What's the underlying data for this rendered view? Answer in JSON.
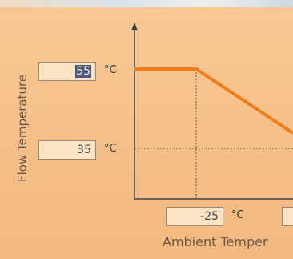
{
  "flow_temperature": {
    "label": "Flow Temperature",
    "max_value": "55",
    "max_unit": "°C",
    "min_value": "35",
    "min_unit": "°C"
  },
  "ambient_temperature": {
    "label": "Ambient Temper",
    "min_value": "-25",
    "min_unit": "°C"
  }
}
